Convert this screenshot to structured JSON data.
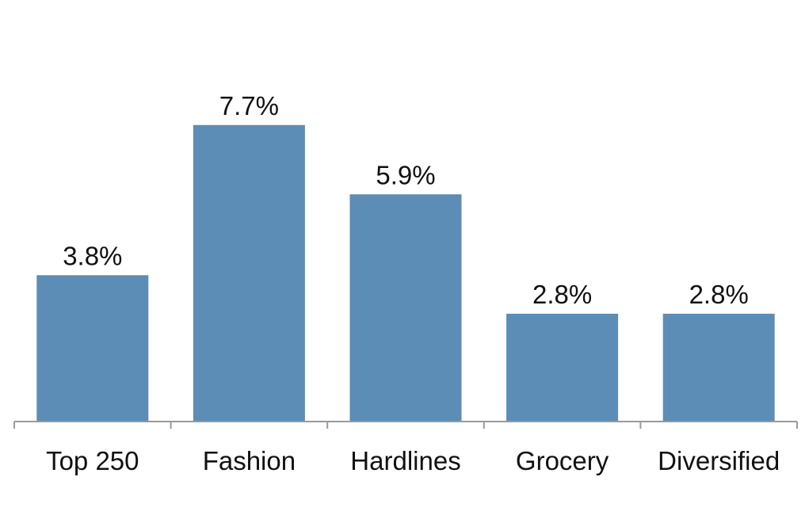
{
  "chart_data": {
    "type": "bar",
    "categories": [
      "Top 250",
      "Fashion",
      "Hardlines",
      "Grocery",
      "Diversified"
    ],
    "values": [
      3.8,
      7.7,
      5.9,
      2.8,
      2.8
    ],
    "data_labels": [
      "3.8%",
      "7.7%",
      "5.9%",
      "2.8%",
      "2.8%"
    ],
    "title": "",
    "xlabel": "",
    "ylabel": "",
    "ylim": [
      0,
      10
    ],
    "grid": false,
    "legend": "none",
    "bar_color": "#5b8db6"
  }
}
